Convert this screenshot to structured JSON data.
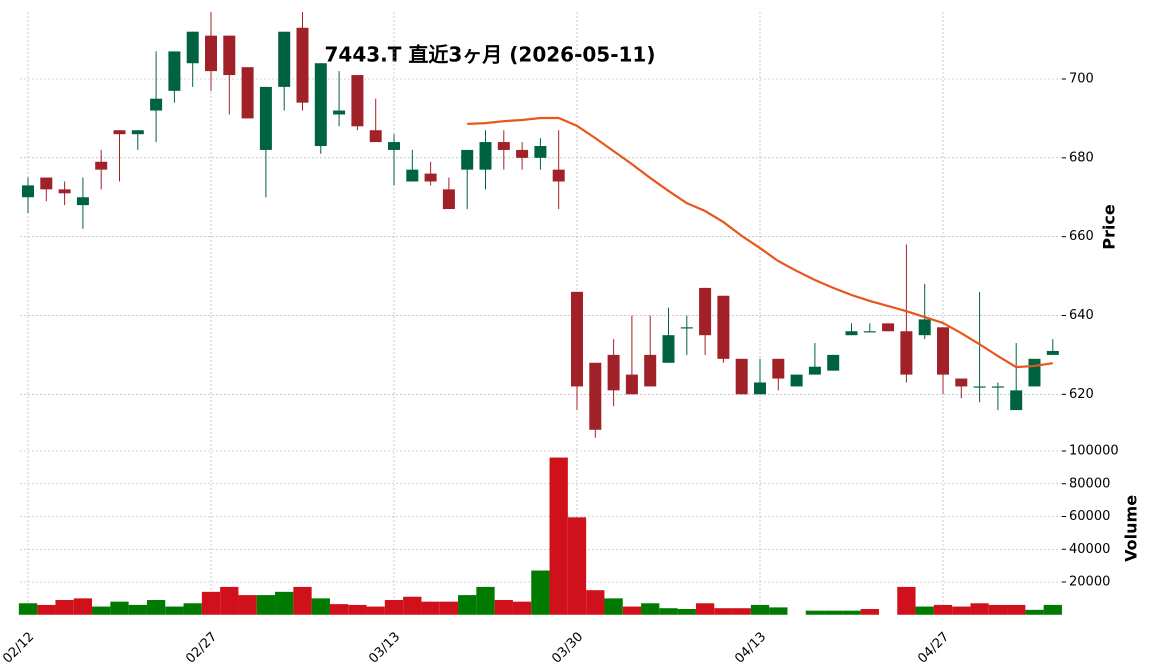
{
  "chart_data": {
    "type": "candlestick",
    "title": "7443.T 直近3ヶ月 (2026-05-11)",
    "categories": [
      "02/12",
      null,
      null,
      null,
      null,
      null,
      null,
      null,
      null,
      null,
      "02/27",
      null,
      null,
      null,
      null,
      null,
      null,
      null,
      null,
      null,
      "03/13",
      null,
      null,
      null,
      null,
      null,
      null,
      null,
      null,
      null,
      "03/30",
      null,
      null,
      null,
      null,
      null,
      null,
      null,
      null,
      null,
      "04/13",
      null,
      null,
      null,
      null,
      null,
      null,
      null,
      null,
      null,
      "04/27",
      null,
      null,
      null,
      null,
      null,
      null
    ],
    "open": [
      670,
      675,
      672,
      668,
      679,
      687,
      686,
      692,
      697,
      704,
      711,
      711,
      703,
      682,
      698,
      713,
      683,
      691,
      701,
      687,
      682,
      674,
      676,
      672,
      677,
      677,
      684,
      682,
      680,
      677,
      646,
      628,
      630,
      625,
      630,
      628,
      637,
      647,
      645,
      629,
      620,
      629,
      622,
      625,
      626,
      635,
      636,
      638,
      636,
      635,
      637,
      624,
      622,
      622,
      616,
      622,
      630
    ],
    "high": [
      675,
      675,
      674,
      675,
      682,
      687,
      687,
      707,
      707,
      712,
      717,
      711,
      703,
      698,
      712,
      717,
      704,
      702,
      701,
      695,
      686,
      682,
      679,
      675,
      682,
      687,
      687,
      684,
      685,
      687,
      646,
      628,
      634,
      640,
      640,
      642,
      640,
      647,
      645,
      629,
      629,
      629,
      625,
      633,
      630,
      638,
      638,
      638,
      658,
      648,
      637,
      624,
      646,
      623,
      633,
      629,
      634
    ],
    "low": [
      666,
      669,
      668,
      662,
      672,
      674,
      682,
      684,
      694,
      698,
      697,
      691,
      690,
      670,
      692,
      692,
      681,
      688,
      687,
      684,
      673,
      674,
      673,
      667,
      667,
      672,
      677,
      677,
      677,
      667,
      616,
      609,
      617,
      620,
      622,
      628,
      630,
      630,
      628,
      620,
      620,
      621,
      622,
      625,
      626,
      635,
      636,
      636,
      623,
      634,
      620,
      619,
      618,
      616,
      616,
      622,
      630
    ],
    "close": [
      673,
      672,
      671,
      670,
      677,
      686,
      687,
      695,
      707,
      712,
      702,
      701,
      690,
      698,
      712,
      694,
      704,
      692,
      688,
      684,
      684,
      677,
      674,
      667,
      682,
      684,
      682,
      680,
      683,
      674,
      622,
      611,
      621,
      620,
      622,
      635,
      637,
      635,
      629,
      620,
      623,
      624,
      625,
      627,
      630,
      636,
      636,
      636,
      625,
      639,
      625,
      622,
      622,
      622,
      621,
      629,
      631
    ],
    "up_color": "#006340",
    "down_color": "#a02128",
    "ma": {
      "color": "#e8561c",
      "values": [
        null,
        null,
        null,
        null,
        null,
        null,
        null,
        null,
        null,
        null,
        null,
        null,
        null,
        null,
        null,
        null,
        null,
        null,
        null,
        null,
        null,
        null,
        null,
        null,
        688.6,
        688.8,
        689.3,
        689.6,
        690.1,
        690.1,
        688.1,
        685.0,
        681.7,
        678.4,
        674.9,
        671.6,
        668.5,
        666.5,
        663.7,
        660.2,
        657.1,
        653.8,
        651.3,
        649.0,
        647.0,
        645.2,
        643.7,
        642.4,
        641.1,
        639.6,
        638.1,
        635.5,
        632.7,
        629.7,
        626.9,
        627.2,
        627.9
      ]
    },
    "ylabel": "Price",
    "ylim": [
      607.9,
      717.0
    ],
    "yticks": [
      620,
      640,
      660,
      680,
      700
    ],
    "volume": {
      "label": "Volume",
      "up_color": "#007a00",
      "down_color": "#d0111b",
      "values": [
        7000,
        6000,
        9000,
        10000,
        5000,
        8000,
        6000,
        9000,
        5000,
        7000,
        14000,
        17000,
        12000,
        12000,
        14000,
        17000,
        10000,
        6500,
        6000,
        5000,
        9000,
        11000,
        8000,
        8000,
        12000,
        17000,
        9000,
        8000,
        27000,
        96000,
        59500,
        15000,
        10000,
        5000,
        7000,
        4000,
        3500,
        7000,
        4000,
        4000,
        6000,
        4500,
        0,
        2500,
        2500,
        2500,
        3500,
        0,
        17000,
        5000,
        6000,
        5000,
        7000,
        6000,
        6000,
        3000,
        6000
      ],
      "ylim": [
        0,
        105500
      ],
      "yticks": [
        20000,
        40000,
        60000,
        80000,
        100000
      ]
    },
    "grid": true
  }
}
